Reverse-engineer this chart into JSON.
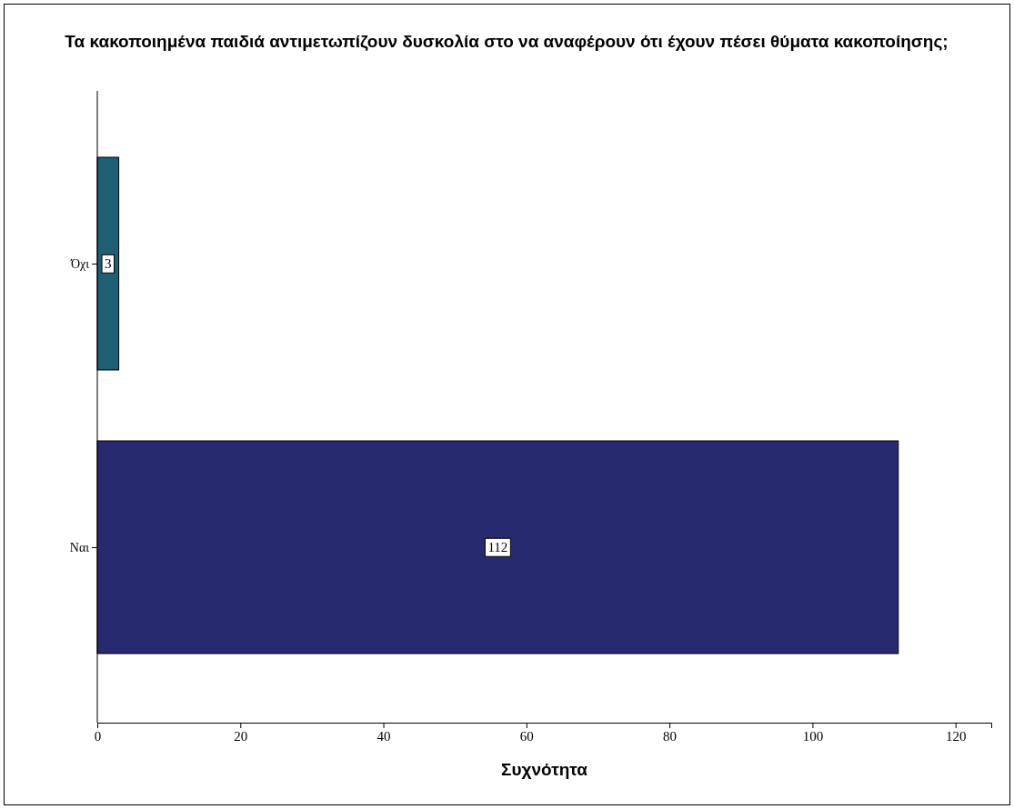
{
  "chart_data": {
    "type": "bar",
    "orientation": "horizontal",
    "title": "Τα κακοποιημένα παιδιά αντιμετωπίζουν δυσκολία στο να αναφέρουν ότι έχουν πέσει θύματα κακοποίησης;",
    "xlabel": "Συχνότητα",
    "categories": [
      "Όχι",
      "Ναι"
    ],
    "values": [
      3,
      112
    ],
    "colors": [
      "#1f5f73",
      "#272a6e"
    ],
    "xlim": [
      0,
      125
    ],
    "xticks": [
      0,
      20,
      40,
      60,
      80,
      100,
      120
    ],
    "data_labels": true
  }
}
